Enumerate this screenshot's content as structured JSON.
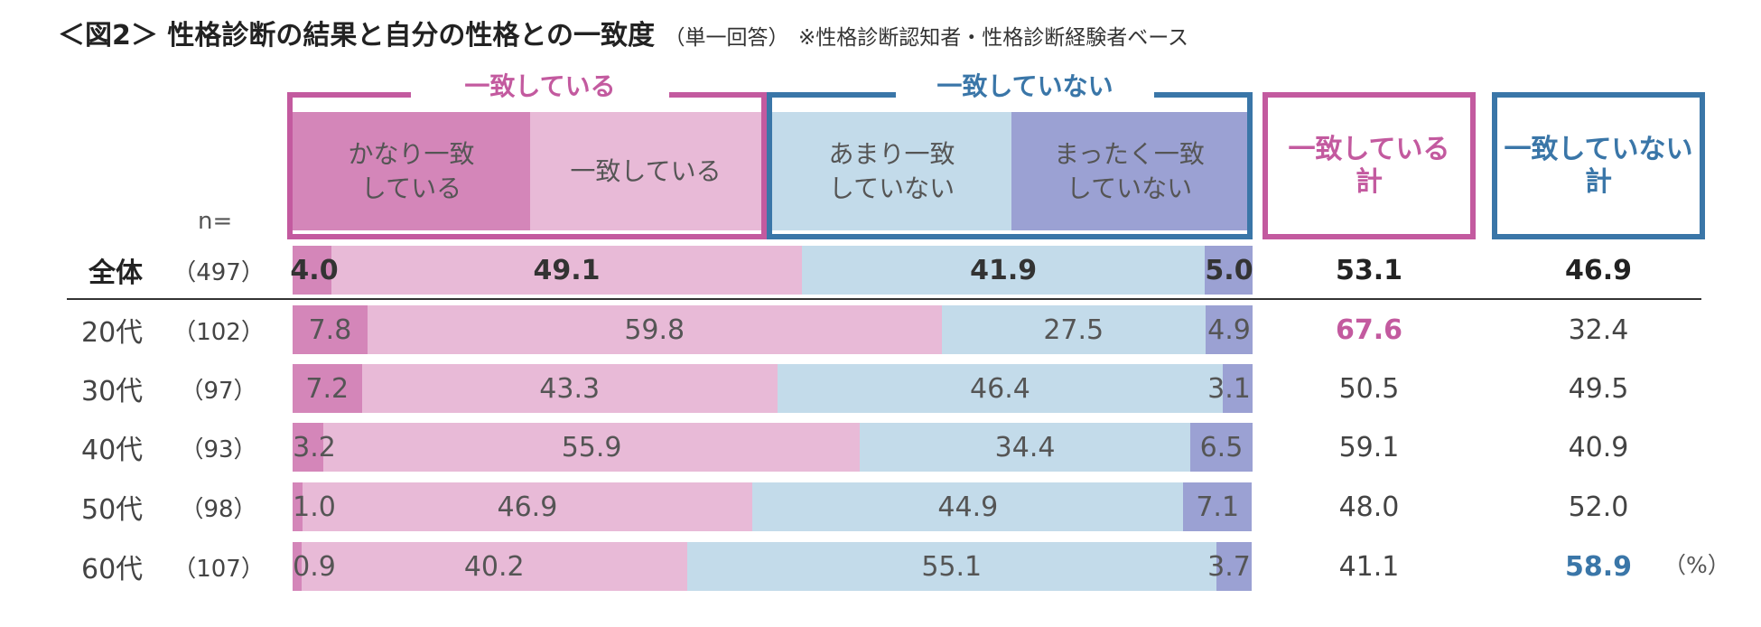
{
  "title": {
    "main": "＜図2＞ 性格診断の結果と自分の性格との一致度",
    "sub": "（単一回答）",
    "note": "※性格診断認知者・性格診断経験者ベース"
  },
  "colors": {
    "very_match": "#d486b9",
    "match": "#e8bad7",
    "not_much": "#c3dbea",
    "not_at_all": "#9ba1d3",
    "accent_pink": "#c35a9f",
    "accent_blue": "#3a76a8"
  },
  "headers": {
    "group_yes": "一致している",
    "group_no": "一致していない",
    "very_match": "かなり一致\nしている",
    "match": "一致している",
    "not_much": "あまり一致\nしていない",
    "not_at_all": "まったく一致\nしていない",
    "total_yes": "一致している\n計",
    "total_no": "一致していない\n計",
    "n_label": "n="
  },
  "unit_note": "（%）",
  "chart_data": {
    "type": "bar",
    "orientation": "horizontal-stacked-100",
    "title": "性格診断の結果と自分の性格との一致度",
    "series": [
      {
        "name": "かなり一致している",
        "values": [
          4.0,
          7.8,
          7.2,
          3.2,
          1.0,
          0.9
        ]
      },
      {
        "name": "一致している",
        "values": [
          49.1,
          59.8,
          43.3,
          55.9,
          46.9,
          40.2
        ]
      },
      {
        "name": "あまり一致していない",
        "values": [
          41.9,
          27.5,
          46.4,
          34.4,
          44.9,
          55.1
        ]
      },
      {
        "name": "まったく一致していない",
        "values": [
          5.0,
          4.9,
          3.1,
          6.5,
          7.1,
          3.7
        ]
      }
    ],
    "categories": [
      "全体",
      "20代",
      "30代",
      "40代",
      "50代",
      "60代"
    ],
    "n": [
      "（497）",
      "（102）",
      "（97）",
      "（93）",
      "（98）",
      "（107）"
    ],
    "totals_match": [
      53.1,
      67.6,
      50.5,
      59.1,
      48.0,
      41.1
    ],
    "totals_no_match": [
      46.9,
      32.4,
      49.5,
      40.9,
      52.0,
      58.9
    ],
    "highlight_match_index": 1,
    "highlight_no_match_index": 5,
    "unit": "%"
  }
}
